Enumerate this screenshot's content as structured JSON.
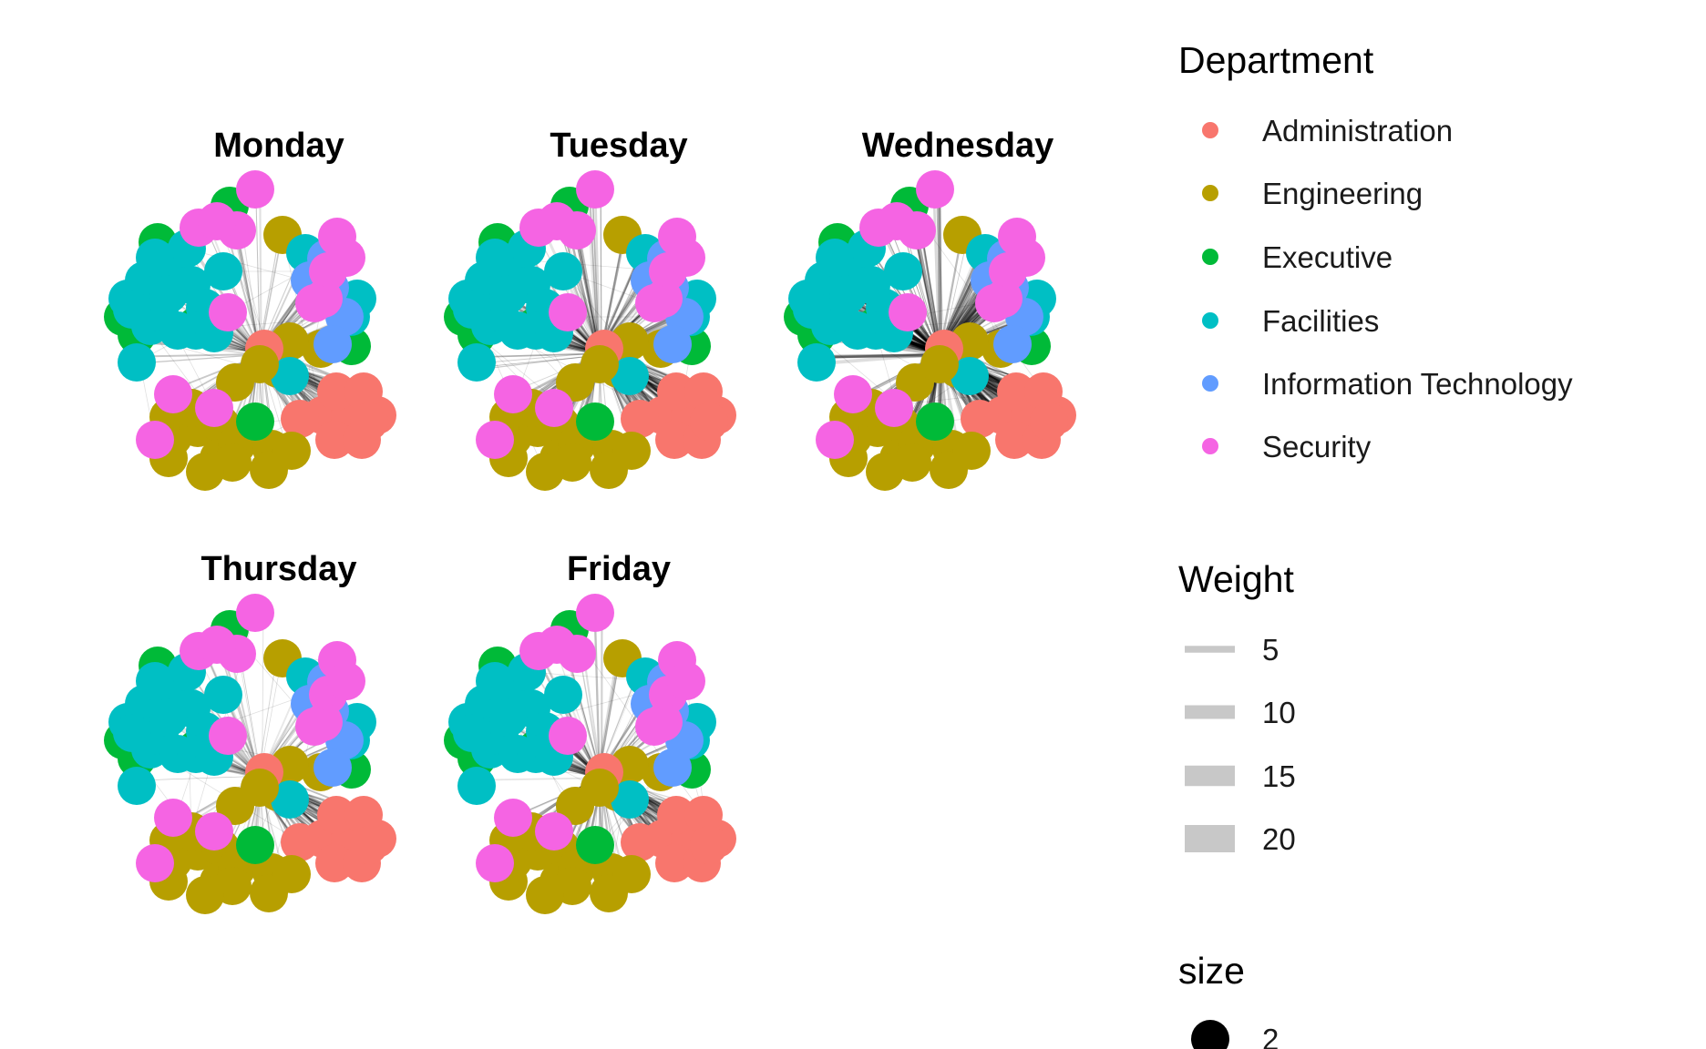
{
  "chart_data": {
    "type": "network",
    "facets": [
      "Monday",
      "Tuesday",
      "Wednesday",
      "Thursday",
      "Friday"
    ],
    "legends": {
      "department": {
        "title": "Department",
        "entries": [
          {
            "label": "Administration",
            "color": "#F8766D"
          },
          {
            "label": "Engineering",
            "color": "#B79F00"
          },
          {
            "label": "Executive",
            "color": "#00BA38"
          },
          {
            "label": "Facilities",
            "color": "#00BFC4"
          },
          {
            "label": "Information Technology",
            "color": "#619CFF"
          },
          {
            "label": "Security",
            "color": "#F564E3"
          }
        ]
      },
      "weight": {
        "title": "Weight",
        "entries": [
          {
            "label": "5",
            "value": 5
          },
          {
            "label": "10",
            "value": 10
          },
          {
            "label": "15",
            "value": 15
          },
          {
            "label": "20",
            "value": 20
          }
        ]
      },
      "size": {
        "title": "size",
        "entries": [
          {
            "label": "2",
            "value": 2
          }
        ]
      }
    },
    "edge_color": "#000000",
    "legend_edge_color": "#C8C8C8",
    "node_group_counts": {
      "Administration": 9,
      "Engineering": 19,
      "Executive": 7,
      "Facilities": 21,
      "Information Technology": 5,
      "Security": 13
    },
    "edge_intensity_by_day": {
      "Monday": 1.0,
      "Tuesday": 1.4,
      "Wednesday": 1.9,
      "Thursday": 0.9,
      "Friday": 1.2
    }
  }
}
